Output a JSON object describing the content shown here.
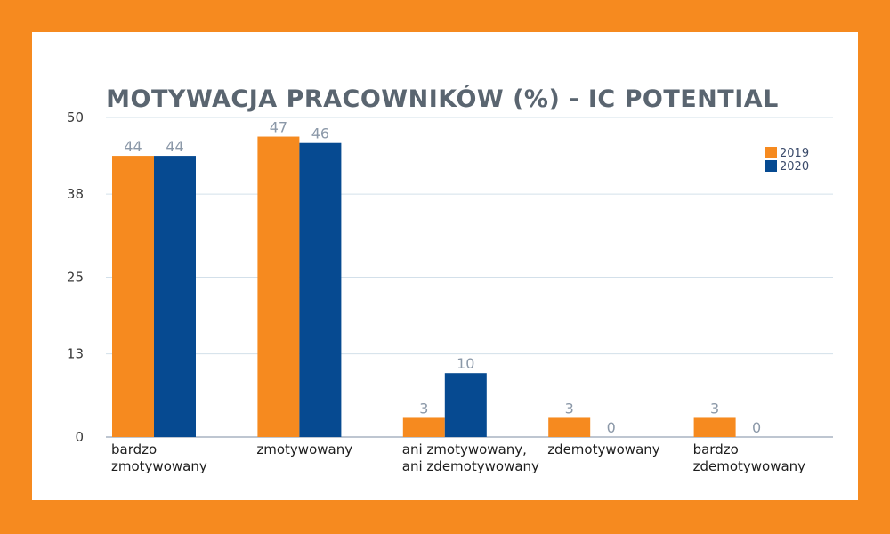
{
  "chart_data": {
    "type": "bar",
    "title": "MOTYWACJA PRACOWNIKÓW (%) - IC POTENTIAL",
    "categories": [
      [
        "bardzo",
        "zmotywowany"
      ],
      [
        "zmotywowany"
      ],
      [
        "ani zmotywowany,",
        "ani zdemotywowany"
      ],
      [
        "zdemotywowany"
      ],
      [
        "bardzo",
        "zdemotywowany"
      ]
    ],
    "series": [
      {
        "name": "2019",
        "color": "#f68a1f",
        "values": [
          44,
          47,
          3,
          3,
          3
        ]
      },
      {
        "name": "2020",
        "color": "#064a91",
        "values": [
          44,
          46,
          10,
          0,
          0
        ]
      }
    ],
    "yticks": [
      0,
      13,
      25,
      38,
      50
    ],
    "ylim": [
      0,
      50
    ],
    "grid": true,
    "legend": "top-right"
  }
}
